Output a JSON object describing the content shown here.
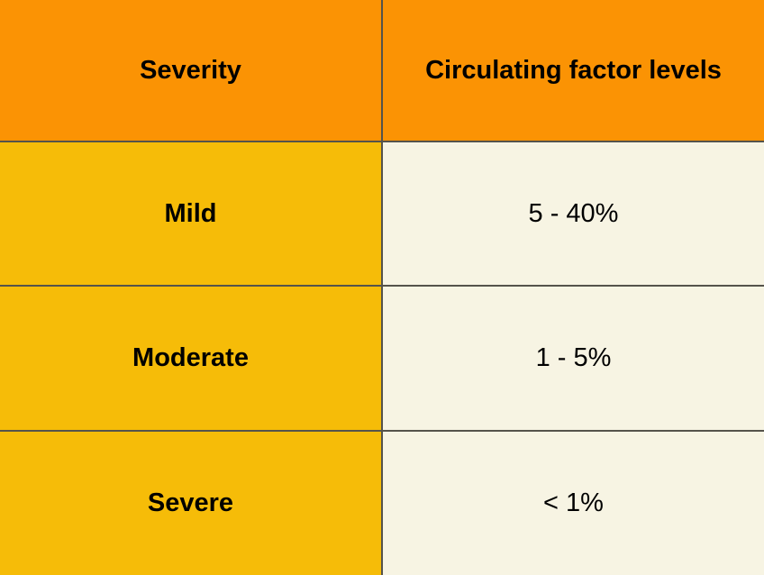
{
  "table": {
    "columns": [
      "Severity",
      "Circulating factor levels"
    ],
    "rows": [
      {
        "severity": "Mild",
        "level": "5 - 40%"
      },
      {
        "severity": "Moderate",
        "level": "1 - 5%"
      },
      {
        "severity": "Severe",
        "level": "< 1%"
      }
    ]
  },
  "colors": {
    "header_bg": "#FB9304",
    "severity_column_bg": "#F6BC08",
    "value_column_bg": "#F7F4E3",
    "divider": "#55534B",
    "text": "#000000"
  },
  "chart_data": {
    "type": "table",
    "columns": [
      "Severity",
      "Circulating factor levels"
    ],
    "rows": [
      [
        "Mild",
        "5 - 40%"
      ],
      [
        "Moderate",
        "1 - 5%"
      ],
      [
        "Severe",
        "< 1%"
      ]
    ],
    "title": "",
    "notes": "Two-column table; header row orange, severity column gold, value column cream; thin dark gridlines between cells only"
  }
}
